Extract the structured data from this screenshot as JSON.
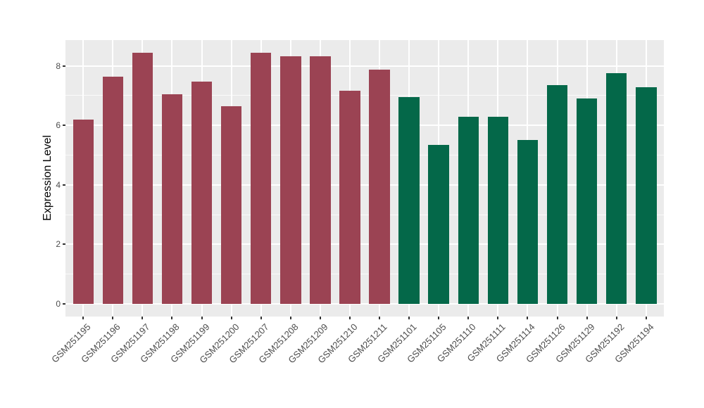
{
  "chart_data": {
    "type": "bar",
    "title": "",
    "xlabel": "",
    "ylabel": "Expression Level",
    "ylim": [
      -0.42,
      8.87
    ],
    "yticks_major": [
      0,
      2,
      4,
      6,
      8
    ],
    "yticks_minor": [
      1,
      3,
      5,
      7
    ],
    "ytick_labels": [
      "0",
      "2",
      "4",
      "6",
      "8"
    ],
    "grid": "on",
    "legend": "none",
    "categories": [
      "GSM251195",
      "GSM251196",
      "GSM251197",
      "GSM251198",
      "GSM251199",
      "GSM251200",
      "GSM251207",
      "GSM251208",
      "GSM251209",
      "GSM251210",
      "GSM251211",
      "GSM251101",
      "GSM251105",
      "GSM251110",
      "GSM251111",
      "GSM251114",
      "GSM251126",
      "GSM251129",
      "GSM251192",
      "GSM251194"
    ],
    "values": [
      6.2,
      7.63,
      8.45,
      7.05,
      7.46,
      6.64,
      8.45,
      8.31,
      8.31,
      7.17,
      7.88,
      6.96,
      5.35,
      6.28,
      6.28,
      5.51,
      7.35,
      6.9,
      7.75,
      7.27
    ],
    "bar_groups": [
      "group1",
      "group1",
      "group1",
      "group1",
      "group1",
      "group1",
      "group1",
      "group1",
      "group1",
      "group1",
      "group1",
      "group2",
      "group2",
      "group2",
      "group2",
      "group2",
      "group2",
      "group2",
      "group2",
      "group2"
    ],
    "group_colors": {
      "group1": "#9B4353",
      "group2": "#046849"
    },
    "style": {
      "panel_background": "#EBEBEB",
      "gridline_color": "#FFFFFF",
      "tick_label_color": "#4D4D4D",
      "axis_title_color": "#000000",
      "tick_mark_color": "#333333",
      "figure_background": "#FFFFFF"
    }
  }
}
